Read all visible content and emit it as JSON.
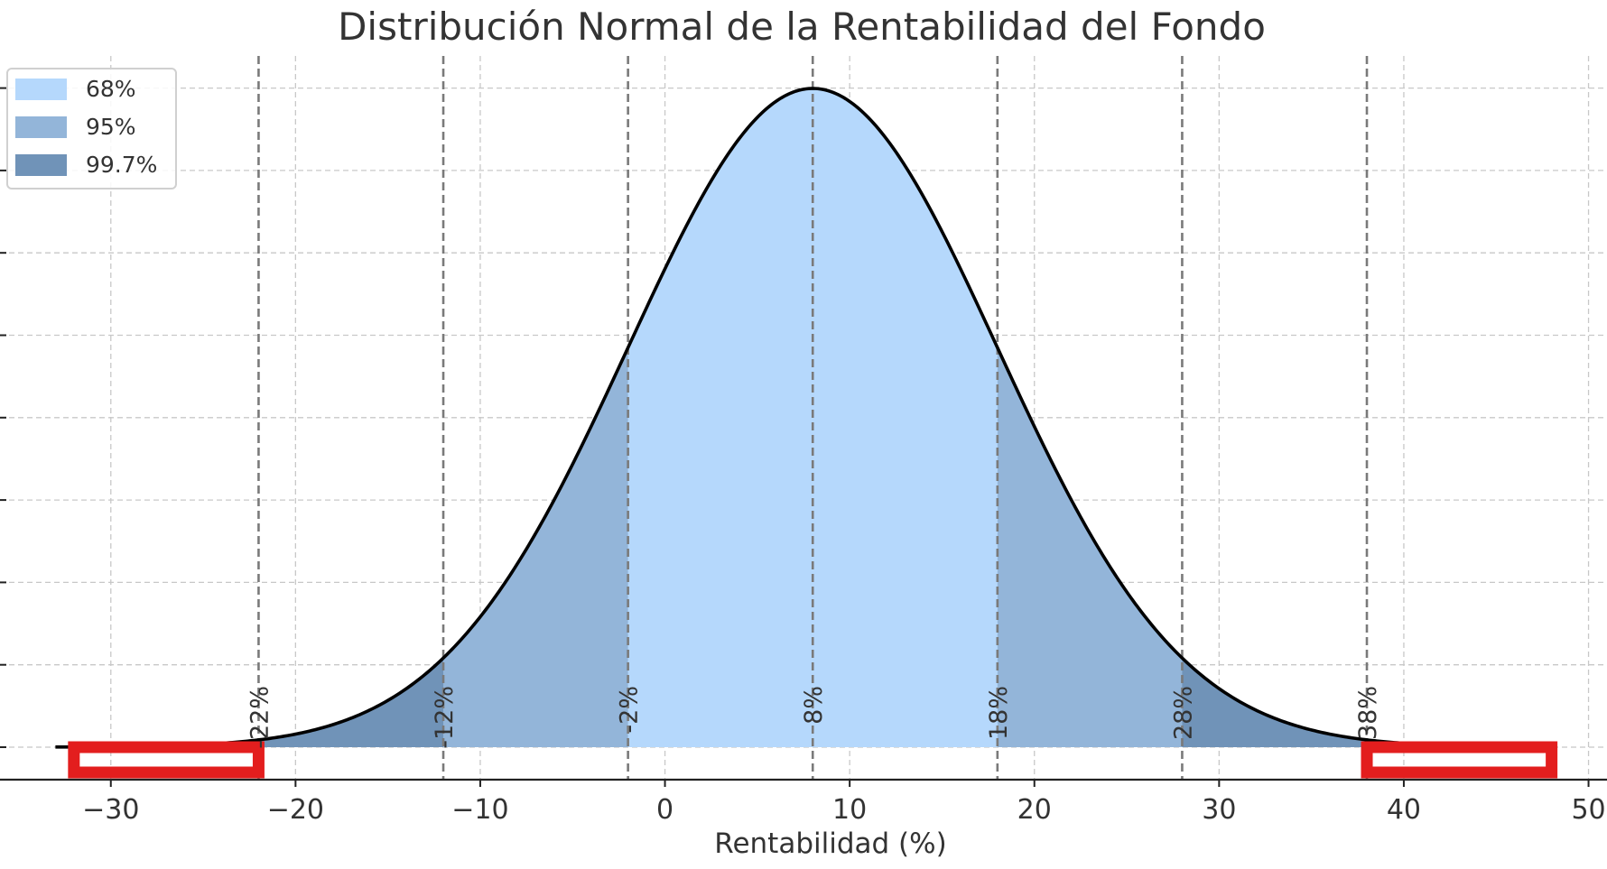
{
  "chart_data": {
    "type": "area",
    "title": "Distribución Normal de la Rentabilidad del Fondo",
    "xlabel": "Rentabilidad (%)",
    "ylabel": "",
    "mean": 8,
    "std": 10,
    "xlim": [
      -36,
      51
    ],
    "x_ticks": [
      -30,
      -20,
      -10,
      0,
      10,
      20,
      30,
      40,
      50
    ],
    "x_tick_labels": [
      "−30",
      "−20",
      "−10",
      "0",
      "10",
      "20",
      "30",
      "40",
      "50"
    ],
    "y_tick_count": 9,
    "grid": true,
    "legend": {
      "position": "top-left",
      "entries": [
        {
          "label": "68%",
          "color": "#b5d8fc",
          "range": [
            -2,
            18
          ]
        },
        {
          "label": "95%",
          "color": "#93b5d9",
          "range": [
            -12,
            28
          ]
        },
        {
          "label": "99.7%",
          "color": "#7093b8",
          "range": [
            -22,
            38
          ]
        }
      ]
    },
    "vertical_lines": [
      {
        "x": -22,
        "label": "-22%"
      },
      {
        "x": -12,
        "label": "-12%"
      },
      {
        "x": -2,
        "label": "-2%"
      },
      {
        "x": 8,
        "label": "8%"
      },
      {
        "x": 18,
        "label": "18%"
      },
      {
        "x": 28,
        "label": "28%"
      },
      {
        "x": 38,
        "label": "38%"
      }
    ],
    "highlight_boxes": [
      {
        "x_range": [
          -32,
          -22
        ],
        "color": "#e31e1e"
      },
      {
        "x_range": [
          38,
          48
        ],
        "color": "#e31e1e"
      }
    ],
    "colors": {
      "curve": "#000000",
      "highlight": "#e31e1e"
    }
  }
}
